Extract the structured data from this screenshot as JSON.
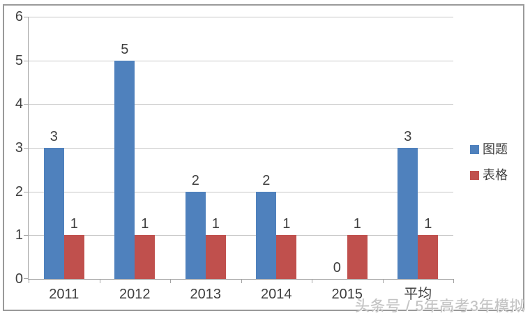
{
  "chart_data": {
    "type": "bar",
    "categories": [
      "2011",
      "2012",
      "2013",
      "2014",
      "2015",
      "平均"
    ],
    "series": [
      {
        "name": "图题",
        "color": "#4F81BD",
        "values": [
          3,
          5,
          2,
          2,
          0,
          3
        ]
      },
      {
        "name": "表格",
        "color": "#C0504D",
        "values": [
          1,
          1,
          1,
          1,
          1,
          1
        ]
      }
    ],
    "title": "",
    "xlabel": "",
    "ylabel": "",
    "ylim": [
      0,
      6
    ],
    "yticks": [
      0,
      1,
      2,
      3,
      4,
      5,
      6
    ],
    "grid": true,
    "data_labels": true,
    "legend_position": "right"
  },
  "colors": {
    "series_blue": "#4F81BD",
    "series_red": "#C0504D",
    "gridline": "#c6c6c6",
    "axis": "#a3a3a3",
    "text": "#3f3f3f",
    "frame_border": "#9a9a9a",
    "watermark_text": "#c3c3c3"
  },
  "watermark": {
    "text": "头条号 / 5年高考3年模拟"
  }
}
